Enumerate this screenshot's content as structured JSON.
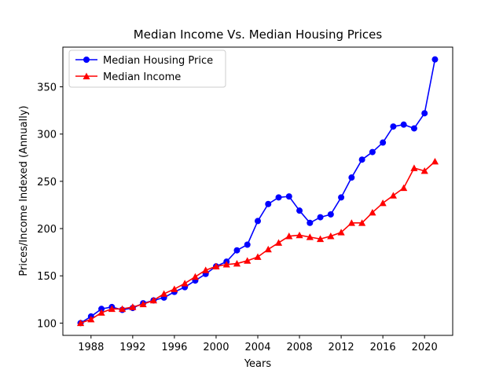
{
  "chart_data": {
    "type": "line",
    "title": "Median Income Vs. Median Housing Prices",
    "xlabel": "Years",
    "ylabel": "Prices/Income Indexed (Annually)",
    "xlim": [
      1985.3,
      2022.7
    ],
    "ylim": [
      87,
      392
    ],
    "xticks": [
      1988,
      1992,
      1996,
      2000,
      2004,
      2008,
      2012,
      2016,
      2020
    ],
    "yticks": [
      100,
      150,
      200,
      250,
      300,
      350
    ],
    "grid": false,
    "legend": "top-left",
    "x": [
      1987,
      1988,
      1989,
      1990,
      1991,
      1992,
      1993,
      1994,
      1995,
      1996,
      1997,
      1998,
      1999,
      2000,
      2001,
      2002,
      2003,
      2004,
      2005,
      2006,
      2007,
      2008,
      2009,
      2010,
      2011,
      2012,
      2013,
      2014,
      2015,
      2016,
      2017,
      2018,
      2019,
      2020,
      2021
    ],
    "series": [
      {
        "name": "Median Housing Price",
        "color": "#0000ff",
        "marker": "circle",
        "values": [
          100,
          107,
          115,
          117,
          114,
          116,
          121,
          124,
          127,
          133,
          138,
          145,
          152,
          160,
          165,
          177,
          183,
          208,
          226,
          233,
          234,
          219,
          206,
          212,
          215,
          233,
          254,
          273,
          281,
          291,
          308,
          310,
          306,
          322,
          379
        ]
      },
      {
        "name": "Median Income",
        "color": "#ff0000",
        "marker": "triangle",
        "values": [
          100,
          104,
          111,
          115,
          115,
          117,
          120,
          124,
          131,
          136,
          142,
          149,
          156,
          160,
          162,
          163,
          166,
          170,
          178,
          185,
          192,
          193,
          191,
          189,
          192,
          196,
          206,
          206,
          217,
          227,
          235,
          243,
          264,
          261,
          271
        ]
      }
    ]
  }
}
